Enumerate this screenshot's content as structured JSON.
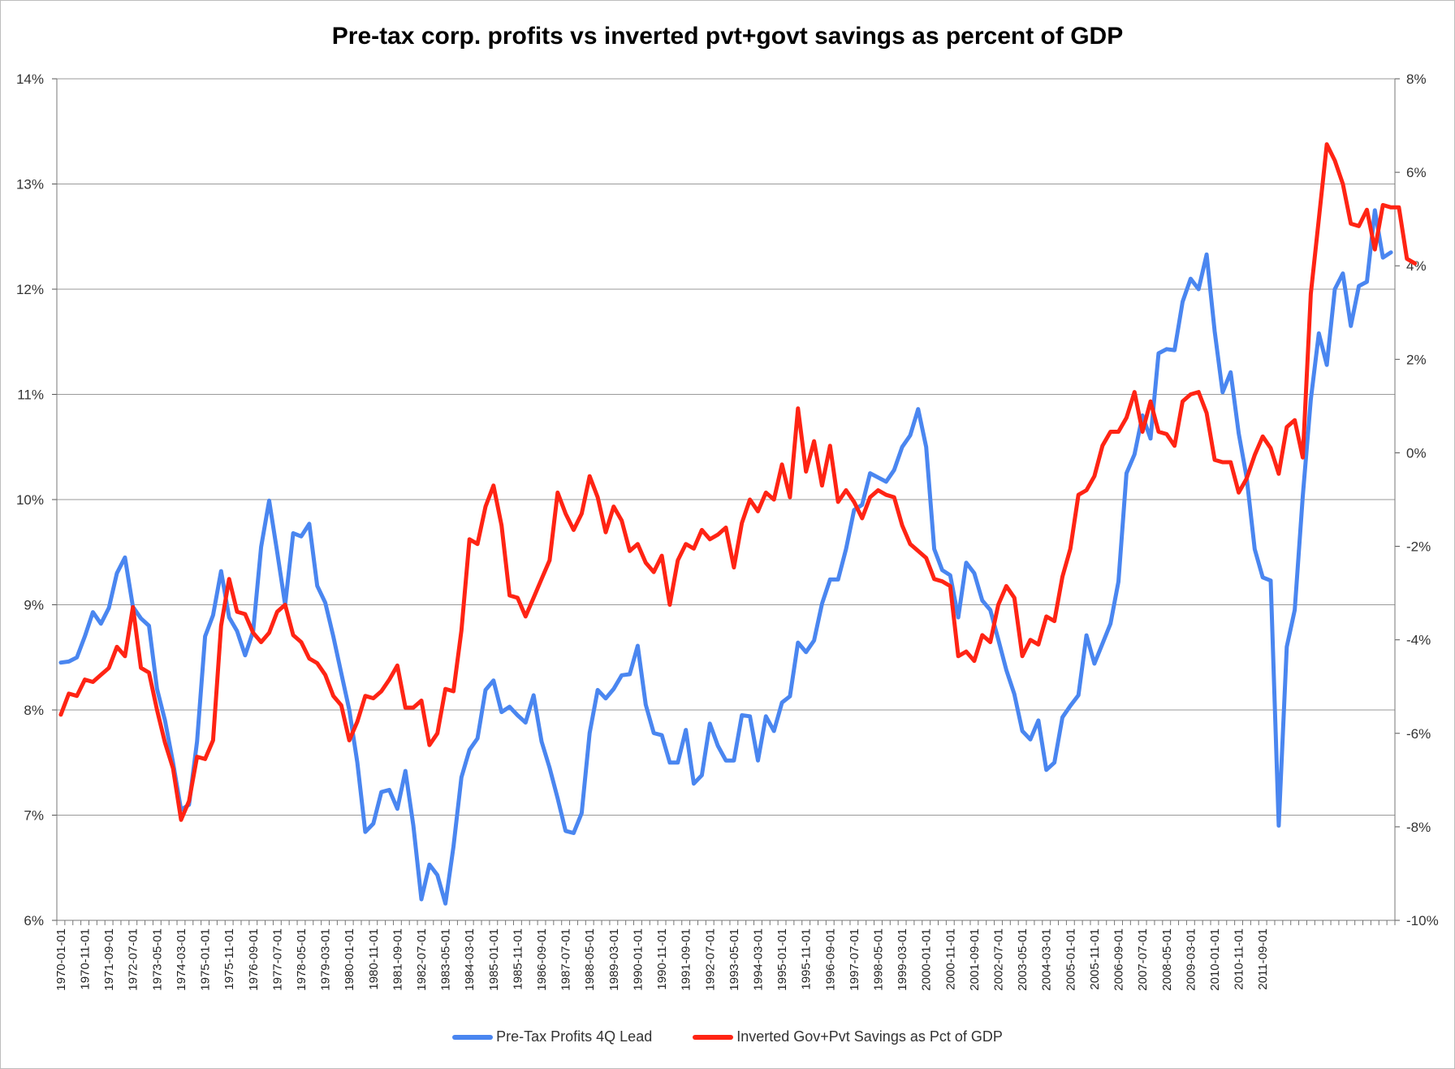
{
  "chart_data": {
    "type": "line",
    "title": "Pre-tax corp. profits vs inverted pvt+govt savings as percent of GDP",
    "x_start": "1970-01-01",
    "x_frequency": "quarterly",
    "x_tick_labels": [
      "1970-01-01",
      "1970-11-01",
      "1971-09-01",
      "1972-07-01",
      "1973-05-01",
      "1974-03-01",
      "1975-01-01",
      "1975-11-01",
      "1976-09-01",
      "1977-07-01",
      "1978-05-01",
      "1979-03-01",
      "1980-01-01",
      "1980-11-01",
      "1981-09-01",
      "1982-07-01",
      "1983-05-01",
      "1984-03-01",
      "1985-01-01",
      "1985-11-01",
      "1986-09-01",
      "1987-07-01",
      "1988-05-01",
      "1989-03-01",
      "1990-01-01",
      "1990-11-01",
      "1991-09-01",
      "1992-07-01",
      "1993-05-01",
      "1994-03-01",
      "1995-01-01",
      "1995-11-01",
      "1996-09-01",
      "1997-07-01",
      "1998-05-01",
      "1999-03-01",
      "2000-01-01",
      "2000-11-01",
      "2001-09-01",
      "2002-07-01",
      "2003-05-01",
      "2004-03-01",
      "2005-01-01",
      "2005-11-01",
      "2006-09-01",
      "2007-07-01",
      "2008-05-01",
      "2009-03-01",
      "2010-01-01",
      "2010-11-01",
      "2011-09-01"
    ],
    "y_left": {
      "min": 6,
      "max": 14,
      "step": 1,
      "tick_labels": [
        "14%",
        "13%",
        "12%",
        "11%",
        "10%",
        "9%",
        "8%",
        "7%",
        "6%"
      ]
    },
    "y_right": {
      "min": -10,
      "max": 8,
      "step": 2,
      "tick_labels": [
        "8%",
        "6%",
        "4%",
        "2%",
        "0%",
        "-2%",
        "-4%",
        "-6%",
        "-8%",
        "-10%"
      ]
    },
    "grid": true,
    "legend_position": "bottom",
    "series": [
      {
        "name": "Pre-Tax Profits 4Q Lead",
        "axis": "left",
        "color": "#4a86f0",
        "values": [
          8.45,
          8.46,
          8.5,
          8.7,
          8.93,
          8.82,
          8.97,
          9.3,
          9.45,
          8.98,
          8.87,
          8.8,
          8.2,
          7.9,
          7.5,
          7.05,
          7.1,
          7.7,
          8.7,
          8.9,
          9.32,
          8.88,
          8.75,
          8.52,
          8.75,
          9.55,
          9.99,
          9.5,
          9.0,
          9.68,
          9.65,
          9.77,
          9.18,
          9.02,
          8.7,
          8.35,
          8.0,
          7.5,
          6.84,
          6.92,
          7.22,
          7.24,
          7.06,
          7.42,
          6.9,
          6.2,
          6.53,
          6.43,
          6.16,
          6.7,
          7.36,
          7.62,
          7.73,
          8.19,
          8.28,
          7.98,
          8.03,
          7.95,
          7.88,
          8.14,
          7.7,
          7.45,
          7.16,
          6.85,
          6.83,
          7.02,
          7.78,
          8.19,
          8.11,
          8.2,
          8.33,
          8.34,
          8.61,
          8.05,
          7.78,
          7.76,
          7.5,
          7.5,
          7.81,
          7.3,
          7.38,
          7.87,
          7.66,
          7.52,
          7.52,
          7.95,
          7.94,
          7.52,
          7.94,
          7.8,
          8.07,
          8.13,
          8.64,
          8.55,
          8.66,
          9.01,
          9.24,
          9.24,
          9.53,
          9.9,
          9.95,
          10.25,
          10.21,
          10.17,
          10.28,
          10.5,
          10.61,
          10.86,
          10.5,
          9.53,
          9.33,
          9.28,
          8.88,
          9.4,
          9.3,
          9.04,
          8.95,
          8.67,
          8.38,
          8.15,
          7.8,
          7.72,
          7.9,
          7.43,
          7.5,
          7.93,
          8.04,
          8.14,
          8.71,
          8.44,
          8.63,
          8.82,
          9.22,
          10.25,
          10.43,
          10.8,
          10.58,
          11.39,
          11.43,
          11.42,
          11.88,
          12.1,
          12.0,
          12.33,
          11.6,
          11.02,
          11.21,
          10.63,
          10.21,
          9.53,
          9.26,
          9.23,
          6.9,
          8.6,
          8.95,
          10.03,
          10.95,
          11.58,
          11.28,
          12.0,
          12.15,
          11.65,
          12.03,
          12.07,
          12.75,
          12.3,
          12.35
        ]
      },
      {
        "name": "Inverted Gov+Pvt Savings as Pct of GDP",
        "axis": "right",
        "color": "#ff2414",
        "values": [
          -5.6,
          -5.15,
          -5.2,
          -4.85,
          -4.9,
          -4.75,
          -4.6,
          -4.15,
          -4.35,
          -3.3,
          -4.6,
          -4.7,
          -5.5,
          -6.2,
          -6.75,
          -7.85,
          -7.45,
          -6.5,
          -6.55,
          -6.15,
          -3.7,
          -2.7,
          -3.4,
          -3.45,
          -3.85,
          -4.05,
          -3.85,
          -3.4,
          -3.25,
          -3.9,
          -4.05,
          -4.4,
          -4.5,
          -4.75,
          -5.2,
          -5.4,
          -6.15,
          -5.75,
          -5.2,
          -5.25,
          -5.1,
          -4.85,
          -4.55,
          -5.45,
          -5.45,
          -5.3,
          -6.25,
          -6.0,
          -5.05,
          -5.1,
          -3.8,
          -1.85,
          -1.95,
          -1.15,
          -0.7,
          -1.55,
          -3.05,
          -3.1,
          -3.5,
          -3.1,
          -2.7,
          -2.3,
          -0.85,
          -1.3,
          -1.65,
          -1.3,
          -0.5,
          -0.95,
          -1.7,
          -1.15,
          -1.45,
          -2.1,
          -1.95,
          -2.35,
          -2.55,
          -2.2,
          -3.25,
          -2.3,
          -1.95,
          -2.05,
          -1.65,
          -1.85,
          -1.75,
          -1.6,
          -2.45,
          -1.5,
          -1.0,
          -1.25,
          -0.85,
          -1.0,
          -0.25,
          -0.95,
          0.95,
          -0.4,
          0.25,
          -0.7,
          0.15,
          -1.05,
          -0.8,
          -1.05,
          -1.4,
          -0.95,
          -0.8,
          -0.9,
          -0.95,
          -1.55,
          -1.95,
          -2.1,
          -2.25,
          -2.7,
          -2.75,
          -2.85,
          -4.35,
          -4.25,
          -4.45,
          -3.9,
          -4.05,
          -3.25,
          -2.85,
          -3.1,
          -4.35,
          -4.0,
          -4.1,
          -3.5,
          -3.6,
          -2.65,
          -2.05,
          -0.9,
          -0.8,
          -0.5,
          0.15,
          0.45,
          0.45,
          0.75,
          1.3,
          0.45,
          1.1,
          0.45,
          0.4,
          0.15,
          1.1,
          1.25,
          1.3,
          0.85,
          -0.15,
          -0.2,
          -0.2,
          -0.85,
          -0.55,
          -0.05,
          0.35,
          0.1,
          -0.45,
          0.55,
          0.7,
          -0.1,
          3.4,
          5.0,
          6.6,
          6.25,
          5.75,
          4.9,
          4.85,
          5.2,
          4.35,
          5.3,
          5.25,
          5.25,
          4.15,
          4.05
        ]
      }
    ]
  },
  "legend": {
    "blue_label": "Pre-Tax Profits 4Q Lead",
    "red_label": "Inverted Gov+Pvt Savings as Pct of GDP"
  }
}
